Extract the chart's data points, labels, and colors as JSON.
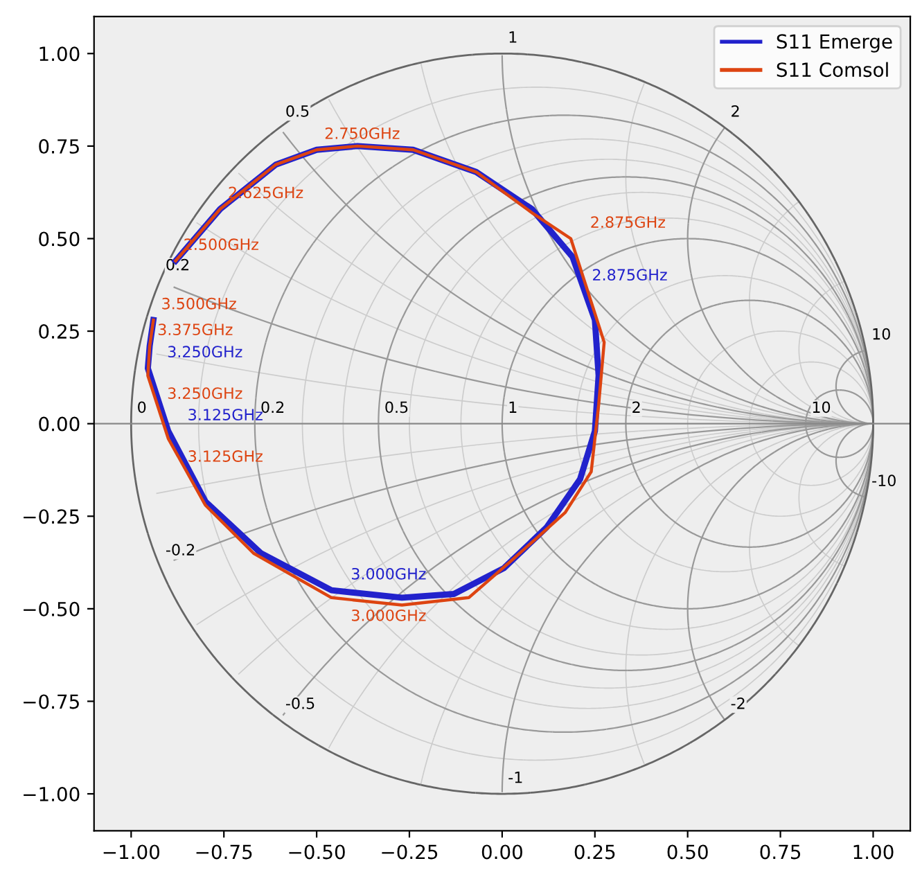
{
  "chart_data": {
    "type": "line",
    "legend": "top right",
    "grid": false,
    "xlim": [
      -1.1,
      1.1
    ],
    "ylim": [
      -1.1,
      1.1
    ],
    "xticks": [
      {
        "value": -1,
        "label": "−1.00"
      },
      {
        "value": -0.75,
        "label": "−0.75"
      },
      {
        "value": -0.5,
        "label": "−0.50"
      },
      {
        "value": -0.25,
        "label": "−0.25"
      },
      {
        "value": 0,
        "label": "0.00"
      },
      {
        "value": 0.25,
        "label": "0.25"
      },
      {
        "value": 0.5,
        "label": "0.50"
      },
      {
        "value": 0.75,
        "label": "0.75"
      },
      {
        "value": 1,
        "label": "1.00"
      }
    ],
    "yticks": [
      {
        "value": -1,
        "label": "−1.00"
      },
      {
        "value": -0.75,
        "label": "−0.75"
      },
      {
        "value": -0.5,
        "label": "−0.50"
      },
      {
        "value": -0.25,
        "label": "−0.25"
      },
      {
        "value": 0,
        "label": "0.00"
      },
      {
        "value": 0.25,
        "label": "0.25"
      },
      {
        "value": 0.5,
        "label": "0.50"
      },
      {
        "value": 0.75,
        "label": "0.75"
      },
      {
        "value": 1,
        "label": "1.00"
      }
    ],
    "ref_lines": [
      {
        "axis": "y",
        "value": 0,
        "color": "#888888"
      }
    ],
    "series": [
      {
        "name": "S11 Emerge",
        "color": "#2222cc",
        "x": [
          -0.88,
          -0.76,
          -0.61,
          -0.5,
          -0.39,
          -0.24,
          -0.07,
          0.08,
          0.19,
          0.25,
          0.26,
          0.25,
          0.21,
          0.12,
          0.005,
          -0.13,
          -0.27,
          -0.46,
          -0.65,
          -0.8,
          -0.9,
          -0.955,
          -0.95,
          -0.94
        ],
        "values": [
          0.44,
          0.58,
          0.7,
          0.74,
          0.75,
          0.74,
          0.68,
          0.58,
          0.45,
          0.28,
          0.13,
          -0.02,
          -0.15,
          -0.28,
          -0.39,
          -0.46,
          -0.47,
          -0.45,
          -0.35,
          -0.21,
          -0.02,
          0.15,
          0.21,
          0.28
        ]
      },
      {
        "name": "S11 Comsol",
        "color": "#dd4411",
        "x": [
          -0.88,
          -0.76,
          -0.61,
          -0.5,
          -0.39,
          -0.24,
          -0.07,
          0.08,
          0.185,
          0.275,
          0.26,
          0.24,
          0.17,
          0.025,
          -0.09,
          -0.27,
          -0.46,
          -0.67,
          -0.8,
          -0.9,
          -0.955,
          -0.95,
          -0.94
        ],
        "values": [
          0.44,
          0.58,
          0.7,
          0.74,
          0.75,
          0.74,
          0.68,
          0.57,
          0.5,
          0.22,
          0.05,
          -0.13,
          -0.24,
          -0.37,
          -0.47,
          -0.49,
          -0.47,
          -0.35,
          -0.22,
          -0.04,
          0.13,
          0.21,
          0.28
        ]
      }
    ],
    "annotations": [
      "0",
      "0.2",
      "0.5",
      "1",
      "2",
      {
        "text": "10",
        "x": 0.818,
        "y": 0
      },
      "0.2",
      "0.5",
      "1",
      "2",
      "10",
      "-0.2",
      "-0.5",
      "-1",
      "-2",
      "-10",
      {
        "text": "2.500GHz",
        "x": -0.88,
        "y": 0.44
      },
      {
        "text": "2.625GHz",
        "x": -0.76,
        "y": 0.58
      },
      {
        "text": "2.750GHz",
        "x": -0.5,
        "y": 0.74
      },
      {
        "text": "2.875GHz",
        "x": 0.19,
        "y": 0.45
      },
      {
        "text": "2.875GHz",
        "x": 0.185,
        "y": 0.5
      },
      {
        "text": "3.000GHz",
        "x": -0.46,
        "y": -0.45
      },
      {
        "text": "3.000GHz",
        "x": -0.46,
        "y": -0.47
      },
      {
        "text": "3.125GHz",
        "x": -0.9,
        "y": -0.02
      },
      {
        "text": "3.125GHz",
        "x": -0.9,
        "y": -0.04
      },
      {
        "text": "3.250GHz",
        "x": -0.955,
        "y": 0.15
      },
      {
        "text": "3.250GHz",
        "x": -0.955,
        "y": 0.13
      },
      {
        "text": "3.375GHz",
        "x": -0.95,
        "y": 0.21
      },
      {
        "text": "3.500GHz",
        "x": -0.94,
        "y": 0.28
      }
    ]
  }
}
